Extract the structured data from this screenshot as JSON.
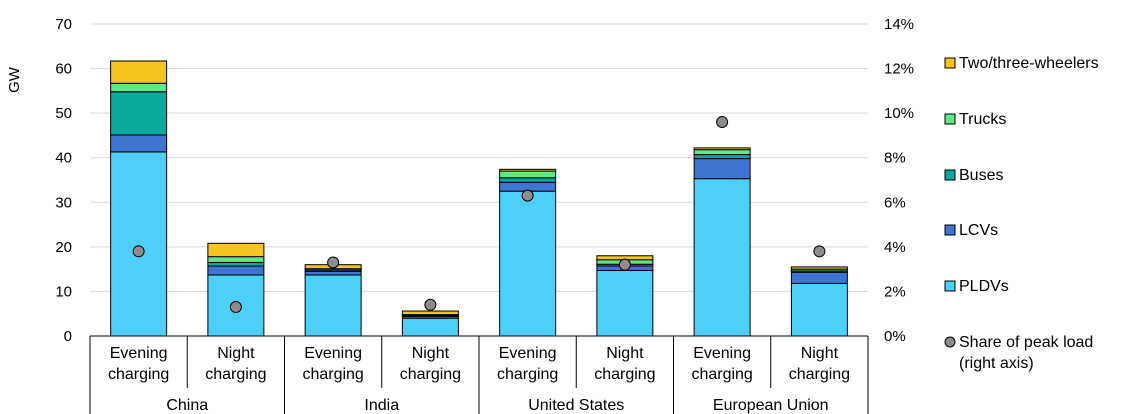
{
  "chart_data": {
    "type": "bar",
    "stacked": true,
    "ylabel": "GW",
    "ylim": [
      0,
      70
    ],
    "yticks": [
      "0",
      "10",
      "20",
      "30",
      "40",
      "50",
      "60",
      "70"
    ],
    "y2lim": [
      0,
      14
    ],
    "y2ticks": [
      "0%",
      "2%",
      "4%",
      "6%",
      "8%",
      "10%",
      "12%",
      "14%"
    ],
    "grid": true,
    "legend_position": "right",
    "groups": [
      {
        "label": "China",
        "bars": [
          {
            "label_top": "Evening",
            "label_bottom": "charging"
          },
          {
            "label_top": "Night",
            "label_bottom": "charging"
          }
        ]
      },
      {
        "label": "India",
        "bars": [
          {
            "label_top": "Evening",
            "label_bottom": "charging"
          },
          {
            "label_top": "Night",
            "label_bottom": "charging"
          }
        ]
      },
      {
        "label": "United States",
        "bars": [
          {
            "label_top": "Evening",
            "label_bottom": "charging"
          },
          {
            "label_top": "Night",
            "label_bottom": "charging"
          }
        ]
      },
      {
        "label": "European Union",
        "bars": [
          {
            "label_top": "Evening",
            "label_bottom": "charging"
          },
          {
            "label_top": "Night",
            "label_bottom": "charging"
          }
        ]
      }
    ],
    "series": [
      {
        "name": "PLDVs",
        "color": "#4dcff7",
        "values": [
          41.3,
          13.7,
          13.7,
          4.0,
          32.5,
          14.7,
          35.3,
          11.8
        ]
      },
      {
        "name": "LCVs",
        "color": "#3f74d0",
        "values": [
          3.8,
          2.0,
          0.8,
          0.4,
          2.0,
          1.0,
          4.5,
          2.5
        ]
      },
      {
        "name": "Buses",
        "color": "#0aa89e",
        "values": [
          9.7,
          0.8,
          0.3,
          0.2,
          1.0,
          0.4,
          0.9,
          0.3
        ]
      },
      {
        "name": "Trucks",
        "color": "#5de88a",
        "values": [
          1.9,
          1.3,
          0.3,
          0.2,
          1.5,
          1.0,
          1.1,
          0.4
        ]
      },
      {
        "name": "Two/three-wheelers",
        "color": "#f7c31f",
        "values": [
          5.0,
          3.0,
          0.9,
          0.8,
          0.4,
          0.9,
          0.4,
          0.5
        ]
      }
    ],
    "share_series": {
      "name": "Share of peak load (right axis)",
      "name_lines": [
        "Share of peak load",
        "(right axis)"
      ],
      "color": "#8c8c8c",
      "unit": "%",
      "values": [
        3.8,
        1.3,
        3.3,
        1.4,
        6.3,
        3.2,
        9.6,
        3.8
      ]
    }
  }
}
